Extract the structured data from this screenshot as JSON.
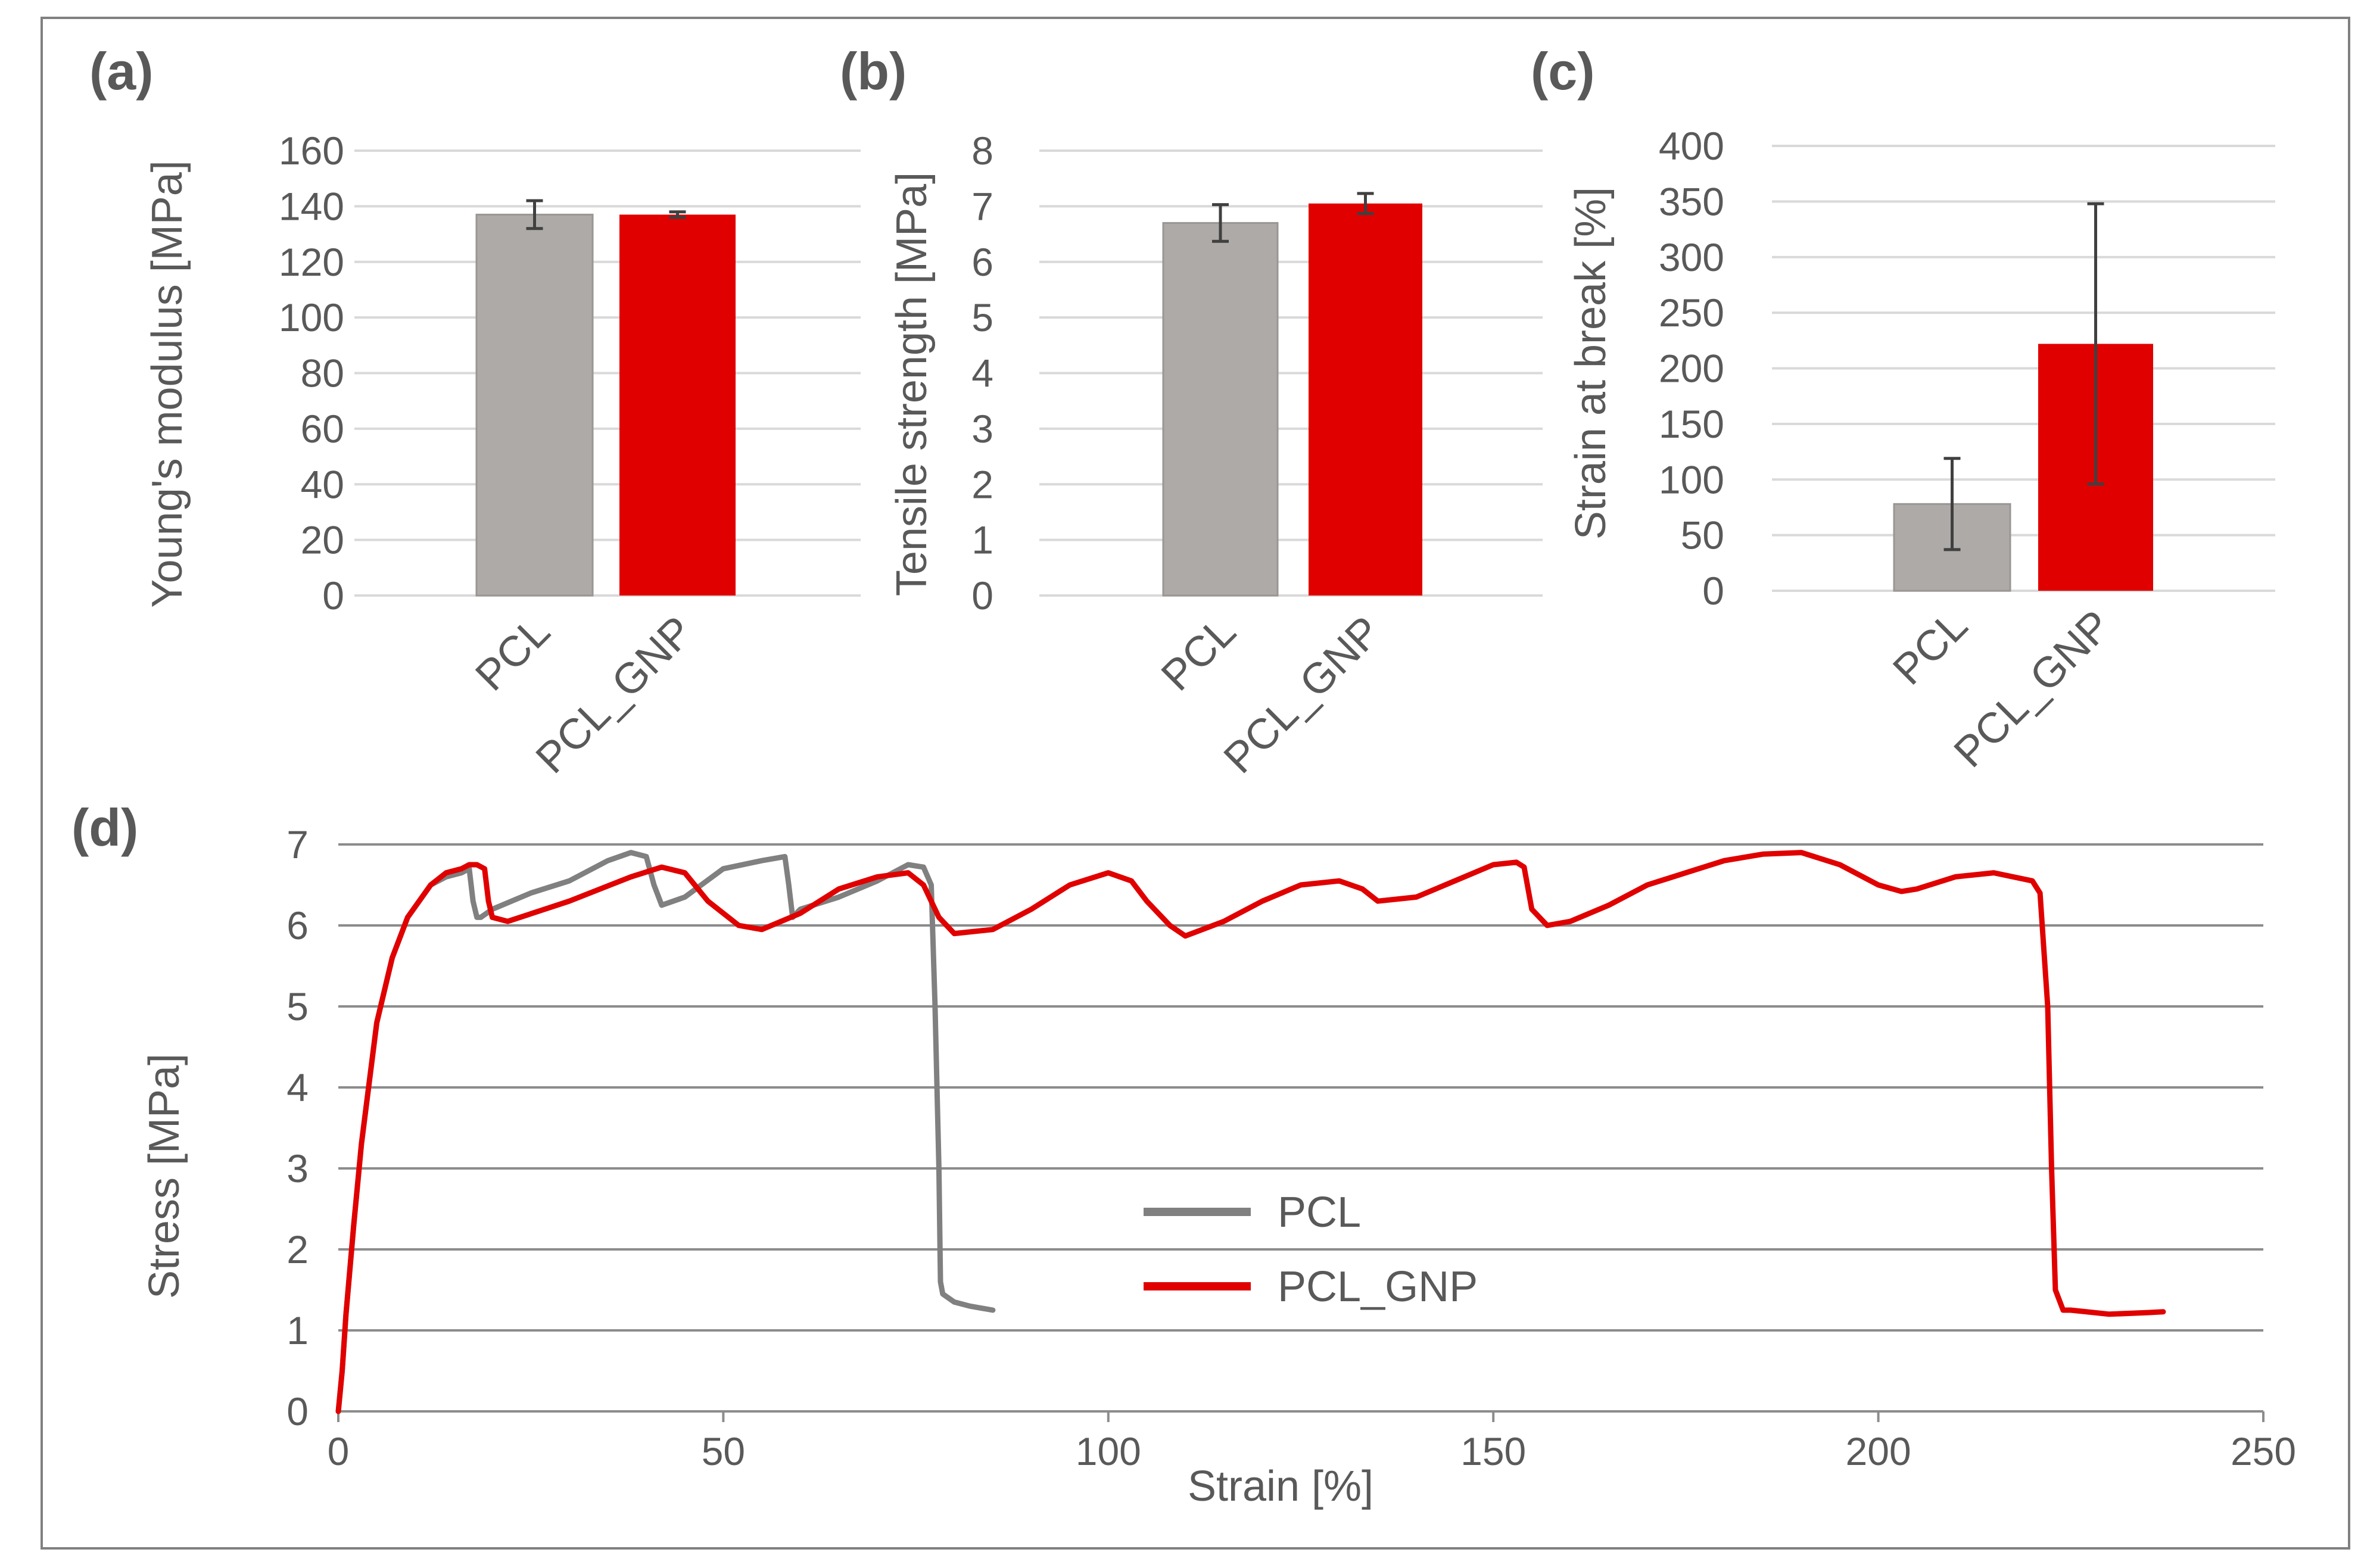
{
  "colors": {
    "PCL": "#aeaaa8",
    "PCL_GNP": "#e00000",
    "line_PCL": "#808080",
    "line_PCL_GNP": "#e00000"
  },
  "chart_data": [
    {
      "panel": "(a)",
      "type": "bar",
      "categories": [
        "PCL",
        "PCL_GNP"
      ],
      "values": [
        137,
        137
      ],
      "errors": [
        5,
        1
      ],
      "ylabel": "Young's modulus [MPa]",
      "ylim": [
        0,
        160
      ],
      "yticks": [
        "0",
        "20",
        "40",
        "60",
        "80",
        "100",
        "120",
        "140",
        "160"
      ],
      "grid": true
    },
    {
      "panel": "(b)",
      "type": "bar",
      "categories": [
        "PCL",
        "PCL_GNP"
      ],
      "values": [
        6.7,
        7.05
      ],
      "errors": [
        0.33,
        0.18
      ],
      "ylabel": "Tensile strength [MPa]",
      "ylim": [
        0,
        8
      ],
      "yticks": [
        "0",
        "1",
        "2",
        "3",
        "4",
        "5",
        "6",
        "7",
        "8"
      ],
      "grid": true
    },
    {
      "panel": "(c)",
      "type": "bar",
      "categories": [
        "PCL",
        "PCL_GNP"
      ],
      "values": [
        78,
        222
      ],
      "errors": [
        41,
        126
      ],
      "ylabel": "Strain at break [%]",
      "ylim": [
        0,
        400
      ],
      "yticks": [
        "0",
        "50",
        "100",
        "150",
        "200",
        "250",
        "300",
        "350",
        "400"
      ],
      "grid": true
    },
    {
      "panel": "(d)",
      "type": "line",
      "xlabel": "Strain [%]",
      "ylabel": "Stress [MPa]",
      "xlim": [
        0,
        250
      ],
      "ylim": [
        0,
        7
      ],
      "xticks": [
        "0",
        "50",
        "100",
        "150",
        "200",
        "250"
      ],
      "yticks": [
        "0",
        "1",
        "2",
        "3",
        "4",
        "5",
        "6",
        "7"
      ],
      "legend_position": "center",
      "series": [
        {
          "name": "PCL",
          "x": [
            0,
            0.5,
            1,
            2,
            3,
            5,
            7,
            9,
            12,
            14,
            16,
            17,
            17.5,
            18,
            18.5,
            20,
            25,
            30,
            35,
            38,
            40,
            41,
            42,
            45,
            50,
            55,
            58,
            58.5,
            59,
            60,
            65,
            70,
            73,
            74,
            76,
            77,
            77.5,
            78,
            78.2,
            78.5,
            80,
            82,
            85
          ],
          "y": [
            0,
            0.5,
            1.2,
            2.3,
            3.3,
            4.8,
            5.6,
            6.1,
            6.5,
            6.6,
            6.65,
            6.7,
            6.3,
            6.1,
            6.1,
            6.2,
            6.4,
            6.55,
            6.8,
            6.9,
            6.85,
            6.5,
            6.25,
            6.35,
            6.7,
            6.8,
            6.85,
            6.5,
            6.1,
            6.2,
            6.35,
            6.55,
            6.7,
            6.75,
            6.72,
            6.5,
            5,
            3,
            1.6,
            1.45,
            1.35,
            1.3,
            1.25
          ]
        },
        {
          "name": "PCL_GNP",
          "x": [
            0,
            0.5,
            1,
            2,
            3,
            5,
            7,
            9,
            12,
            14,
            16,
            17,
            18,
            19,
            19.5,
            20,
            22,
            30,
            38,
            42,
            45,
            48,
            52,
            55,
            60,
            65,
            70,
            74,
            76,
            78,
            80,
            85,
            90,
            95,
            100,
            103,
            105,
            108,
            110,
            115,
            120,
            125,
            130,
            133,
            135,
            140,
            145,
            150,
            153,
            154,
            155,
            157,
            160,
            165,
            170,
            175,
            180,
            185,
            190,
            195,
            200,
            203,
            205,
            210,
            215,
            220,
            221,
            222,
            222.5,
            223,
            224,
            225,
            230,
            235,
            237
          ],
          "y": [
            0,
            0.5,
            1.2,
            2.3,
            3.3,
            4.8,
            5.6,
            6.1,
            6.5,
            6.65,
            6.7,
            6.75,
            6.75,
            6.7,
            6.3,
            6.1,
            6.05,
            6.3,
            6.6,
            6.72,
            6.65,
            6.3,
            6.0,
            5.95,
            6.15,
            6.45,
            6.6,
            6.65,
            6.5,
            6.1,
            5.9,
            5.95,
            6.2,
            6.5,
            6.65,
            6.55,
            6.3,
            6.0,
            5.87,
            6.05,
            6.3,
            6.5,
            6.55,
            6.45,
            6.3,
            6.35,
            6.55,
            6.75,
            6.78,
            6.72,
            6.2,
            6.0,
            6.05,
            6.25,
            6.5,
            6.65,
            6.8,
            6.88,
            6.9,
            6.75,
            6.5,
            6.42,
            6.45,
            6.6,
            6.65,
            6.55,
            6.4,
            5.0,
            3.0,
            1.5,
            1.25,
            1.25,
            1.2,
            1.22,
            1.23
          ]
        }
      ]
    }
  ]
}
